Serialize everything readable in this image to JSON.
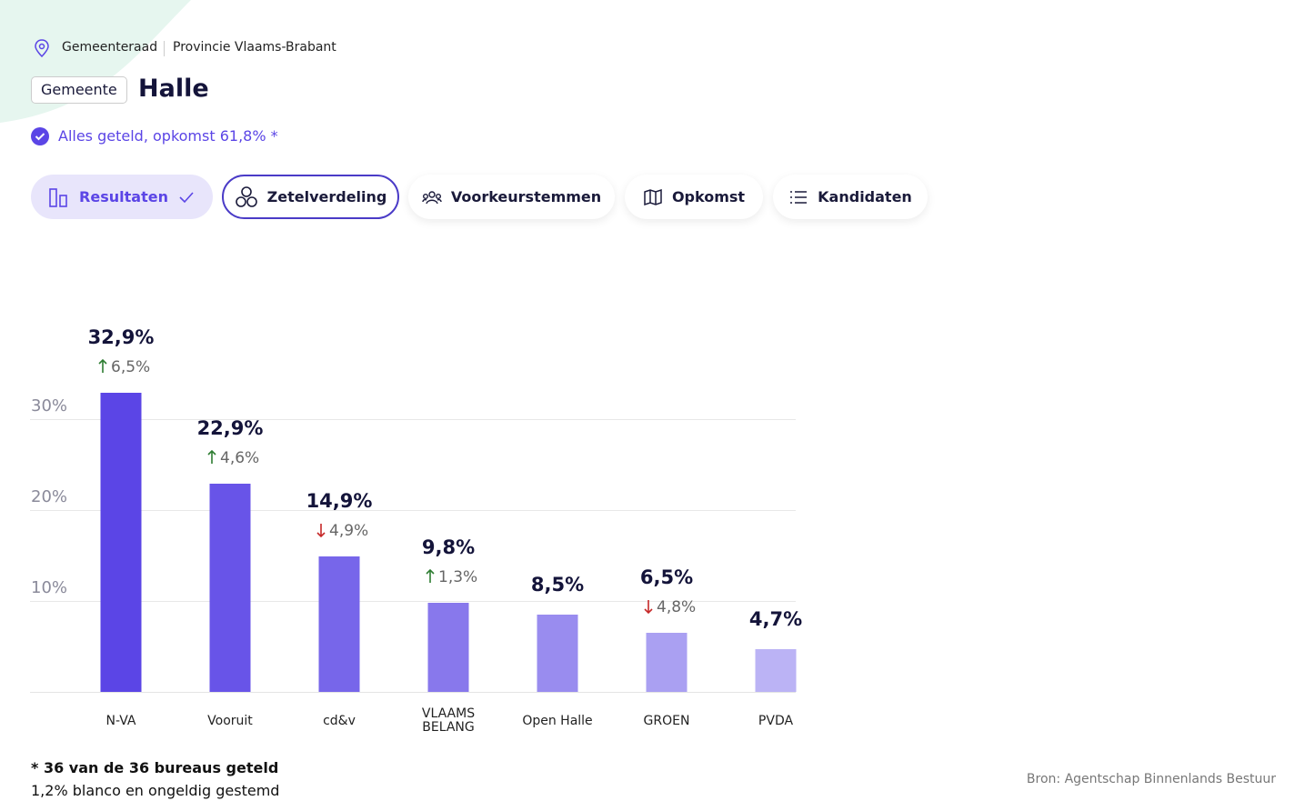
{
  "header": {
    "breadcrumb": [
      "Gemeenteraad",
      "Provincie Vlaams-Brabant"
    ],
    "badge": "Gemeente",
    "title": "Halle",
    "status": "Alles geteld, opkomst 61,8% *"
  },
  "tabs": [
    "Resultaten",
    "Zetelverdeling",
    "Voorkeurstemmen",
    "Opkomst",
    "Kandidaten"
  ],
  "chart_data": {
    "type": "bar",
    "categories": [
      "N-VA",
      "Vooruit",
      "cd&v",
      "VLAAMS BELANG",
      "Open Halle",
      "GROEN",
      "PVDA"
    ],
    "values": [
      32.9,
      22.9,
      14.9,
      9.8,
      8.5,
      6.5,
      4.7
    ],
    "value_labels": [
      "32,9%",
      "22,9%",
      "14,9%",
      "9,8%",
      "8,5%",
      "6,5%",
      "4,7%"
    ],
    "colors": [
      "#5b45e6",
      "#6854e8",
      "#7766ea",
      "#8878ec",
      "#998cef",
      "#aaa0f2",
      "#bbb3f5"
    ],
    "changes": {
      "values": [
        6.5,
        4.6,
        -4.9,
        1.3,
        null,
        -4.8,
        null
      ],
      "value_labels": [
        "6,5%",
        "4,6%",
        "4,9%",
        "1,3%",
        null,
        "4,8%",
        null
      ],
      "up_color": "#2e7d32",
      "down_color": "#c62828"
    },
    "ylim": [
      0,
      30
    ],
    "yticks": [
      {
        "value": 10,
        "label": "10%"
      },
      {
        "value": 20,
        "label": "20%"
      },
      {
        "value": 30,
        "label": "30%"
      }
    ],
    "grid": true
  },
  "footer": {
    "notes": [
      "* 36 van de 36 bureaus geteld",
      "1,2% blanco en ongeldig gestemd"
    ],
    "source": "Bron: Agentschap Binnenlands Bestuur"
  }
}
